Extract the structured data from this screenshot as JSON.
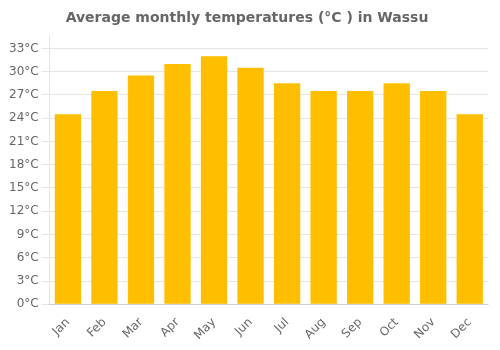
{
  "chart_data": {
    "type": "bar",
    "title": "Average monthly temperatures (°C ) in Wassu",
    "categories": [
      "Jan",
      "Feb",
      "Mar",
      "Apr",
      "May",
      "Jun",
      "Jul",
      "Aug",
      "Sep",
      "Oct",
      "Nov",
      "Dec"
    ],
    "values": [
      24.5,
      27.5,
      29.5,
      31.0,
      32.0,
      30.5,
      28.5,
      27.5,
      27.5,
      28.5,
      27.5,
      24.5
    ],
    "color": "#FFBE00",
    "ylim": [
      0,
      34.5
    ],
    "yticks": [
      {
        "value": 0,
        "label": "0°C"
      },
      {
        "value": 3,
        "label": "3°C"
      },
      {
        "value": 6,
        "label": "6°C"
      },
      {
        "value": 9,
        "label": "9°C"
      },
      {
        "value": 12,
        "label": "12°C"
      },
      {
        "value": 15,
        "label": "15°C"
      },
      {
        "value": 18,
        "label": "18°C"
      },
      {
        "value": 21,
        "label": "21°C"
      },
      {
        "value": 24,
        "label": "24°C"
      },
      {
        "value": 27,
        "label": "27°C"
      },
      {
        "value": 30,
        "label": "30°C"
      },
      {
        "value": 33,
        "label": "33°C"
      }
    ],
    "grid": true
  }
}
